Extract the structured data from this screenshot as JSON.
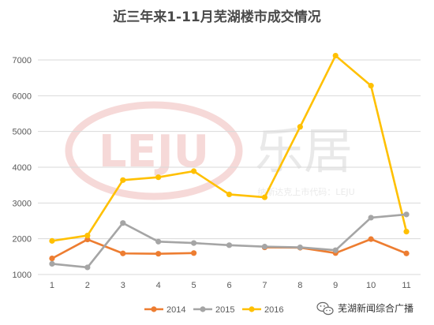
{
  "chart_data": {
    "type": "line",
    "title": "近三年来1-11月芜湖楼市成交情况",
    "x": [
      1,
      2,
      3,
      4,
      5,
      6,
      7,
      8,
      9,
      10,
      11
    ],
    "ylim": [
      1000,
      7000
    ],
    "yticks": [
      1000,
      2000,
      3000,
      4000,
      5000,
      6000,
      7000
    ],
    "grid": true,
    "legend": "bottom",
    "series": [
      {
        "name": "2014",
        "color": "#ED7D31",
        "values": [
          1450,
          1980,
          1590,
          1580,
          1600,
          null,
          null,
          null,
          null,
          null,
          null
        ]
      },
      {
        "name": "2014",
        "color": "#ED7D31",
        "values": [
          null,
          null,
          null,
          null,
          null,
          null,
          1760,
          1750,
          1600,
          1990,
          1590
        ]
      },
      {
        "name": "2015",
        "color": "#A5A5A5",
        "values": [
          1300,
          1200,
          2440,
          1920,
          1880,
          1820,
          1780,
          1760,
          1680,
          2590,
          2680
        ]
      },
      {
        "name": "2016",
        "color": "#FFC000",
        "values": [
          1940,
          2090,
          3640,
          3720,
          3890,
          3240,
          3160,
          5130,
          7120,
          6280,
          2200
        ]
      }
    ],
    "legend_entries": [
      {
        "name": "2014",
        "color": "#ED7D31"
      },
      {
        "name": "2015",
        "color": "#A5A5A5"
      },
      {
        "name": "2016",
        "color": "#FFC000"
      }
    ]
  },
  "watermark": {
    "logo_text": "LEJU",
    "brand_text": "乐居",
    "tagline": "纳斯达克上市代码：LEJU"
  },
  "source_badge": {
    "icon": "wechat-icon",
    "text": "芜湖新闻综合广播"
  }
}
